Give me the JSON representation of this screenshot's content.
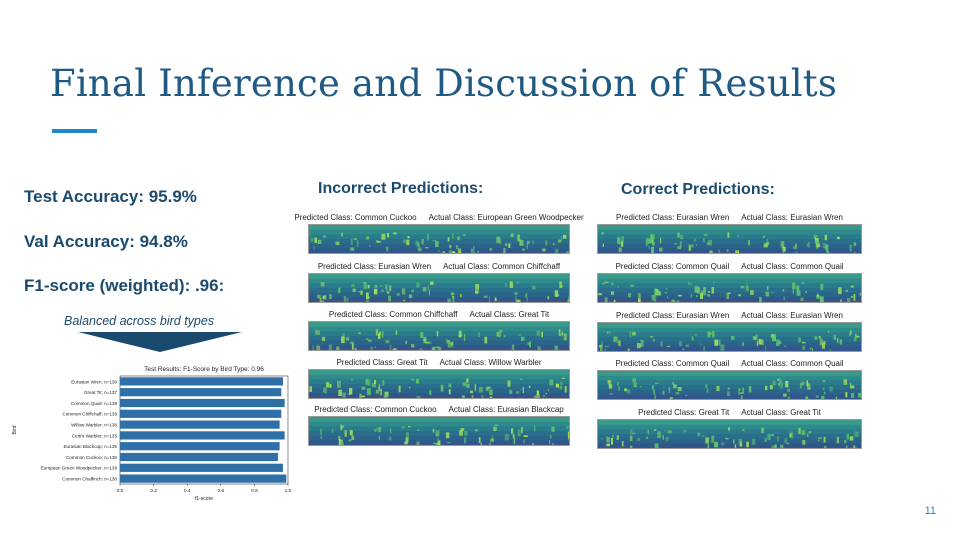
{
  "slide": {
    "title": "Final Inference and Discussion of Results",
    "page_number": "11",
    "accent": "#1e88c8",
    "text_color": "#1a4a6e"
  },
  "metrics": {
    "test_accuracy": "Test Accuracy: 95.9%",
    "val_accuracy": "Val Accuracy: 94.8%",
    "f1": "F1-score (weighted): .96:",
    "balanced_note": "Balanced across bird types"
  },
  "incorrect": {
    "heading": "Incorrect Predictions:",
    "panels": [
      {
        "predicted": "Predicted Class: Common Cuckoo",
        "actual": "Actual Class: European Green Woodpecker"
      },
      {
        "predicted": "Predicted Class: Eurasian Wren",
        "actual": "Actual Class: Common Chiffchaff"
      },
      {
        "predicted": "Predicted Class: Common Chiffchaff",
        "actual": "Actual Class: Great Tit"
      },
      {
        "predicted": "Predicted Class: Great Tit",
        "actual": "Actual Class: Willow Warbler"
      },
      {
        "predicted": "Predicted Class: Common Cuckoo",
        "actual": "Actual Class: Eurasian Blackcap"
      }
    ]
  },
  "correct": {
    "heading": "Correct Predictions:",
    "panels": [
      {
        "predicted": "Predicted Class: Eurasian Wren",
        "actual": "Actual Class: Eurasian Wren"
      },
      {
        "predicted": "Predicted Class: Common Quail",
        "actual": "Actual Class: Common Quail"
      },
      {
        "predicted": "Predicted Class: Eurasian Wren",
        "actual": "Actual Class: Eurasian Wren"
      },
      {
        "predicted": "Predicted Class: Common Quail",
        "actual": "Actual Class: Common Quail"
      },
      {
        "predicted": "Predicted Class: Great Tit",
        "actual": "Actual Class: Great Tit"
      }
    ]
  },
  "chart_data": {
    "type": "bar",
    "orientation": "horizontal",
    "title": "Test Results: F1-Score by Bird Type: 0.96",
    "xlabel": "f1-score",
    "ylabel": "Bird",
    "xlim": [
      0.0,
      1.0
    ],
    "xticks": [
      "0.0",
      "0.2",
      "0.4",
      "0.6",
      "0.8",
      "1.0"
    ],
    "categories": [
      "Eurasian Wren; n=139",
      "Great Tit; n=137",
      "Common Quail; n=139",
      "Common Chiffchaff; n=138",
      "Willow Warbler; n=138",
      "Cetti's Warbler; n=135",
      "Eurasian Blackcap; n=139",
      "Common Cuckoo; n=139",
      "European Green Woodpecker; n=138",
      "Common Chaffinch; n=138"
    ],
    "values": [
      0.97,
      0.96,
      0.98,
      0.96,
      0.95,
      0.98,
      0.95,
      0.94,
      0.97,
      0.99
    ],
    "bar_color": "#2e6fa7"
  }
}
